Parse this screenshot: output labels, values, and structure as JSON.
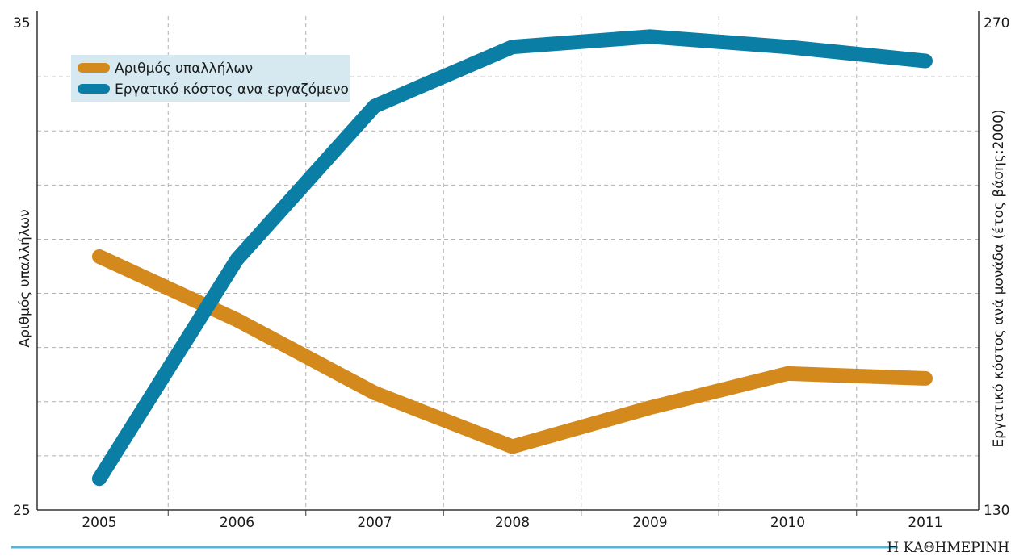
{
  "chart_data": {
    "type": "line",
    "x": [
      "2005",
      "2006",
      "2007",
      "2008",
      "2009",
      "2010",
      "2011"
    ],
    "series": [
      {
        "name": "Αριθμός υπαλλήλων",
        "axis": "left",
        "color": "#d4891c",
        "values": [
          30.2,
          28.9,
          27.4,
          26.3,
          27.1,
          27.8,
          27.7
        ]
      },
      {
        "name": "Εργατικό κόστος ανα εργαζόμενο",
        "axis": "right",
        "color": "#0a7ea4",
        "values": [
          139,
          202,
          246,
          263,
          266,
          263,
          259
        ]
      }
    ],
    "y_left": {
      "label": "Αριθμός υπαλλήλων",
      "ylim": [
        25,
        35
      ],
      "tick_labels": [
        "35",
        "25"
      ]
    },
    "y_right": {
      "label": "Εργατικό κόστος ανά μονάδα (έτος βάσης:2000)",
      "ylim": [
        130,
        270
      ],
      "tick_labels": [
        "270",
        "130"
      ]
    },
    "grid": true,
    "legend_position": "top-left",
    "legend_background": "#d6e8f0"
  },
  "footer": {
    "brand": "Η ΚΑΘΗΜΕΡΙΝΗ",
    "rule_color": "#5ab4d6"
  }
}
